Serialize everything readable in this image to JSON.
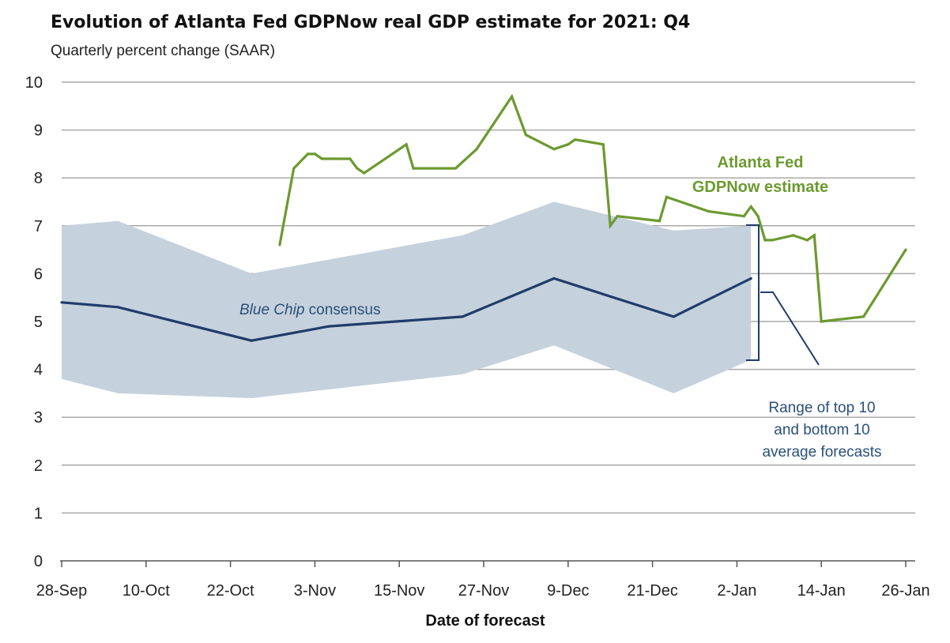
{
  "chart_data": {
    "type": "line",
    "title": "Evolution of Atlanta Fed GDPNow real GDP estimate for 2021: Q4",
    "subtitle": "Quarterly percent change (SAAR)",
    "xlabel": "Date of forecast",
    "ylabel": "",
    "ylim": [
      0,
      10
    ],
    "yticks": [
      "0",
      "1",
      "2",
      "3",
      "4",
      "5",
      "6",
      "7",
      "8",
      "9",
      "10"
    ],
    "xlim": [
      "2021-09-28",
      "2022-01-26"
    ],
    "xticks": [
      {
        "label": "28-Sep",
        "date": "2021-09-28"
      },
      {
        "label": "10-Oct",
        "date": "2021-10-10"
      },
      {
        "label": "22-Oct",
        "date": "2021-10-22"
      },
      {
        "label": "3-Nov",
        "date": "2021-11-03"
      },
      {
        "label": "15-Nov",
        "date": "2021-11-15"
      },
      {
        "label": "27-Nov",
        "date": "2021-11-27"
      },
      {
        "label": "9-Dec",
        "date": "2021-12-09"
      },
      {
        "label": "21-Dec",
        "date": "2021-12-21"
      },
      {
        "label": "2-Jan",
        "date": "2022-01-02"
      },
      {
        "label": "14-Jan",
        "date": "2022-01-14"
      },
      {
        "label": "26-Jan",
        "date": "2022-01-26"
      }
    ],
    "grid": true,
    "series": [
      {
        "name": "Atlanta Fed GDPNow estimate",
        "color": "#6b9a2f",
        "points": [
          {
            "x": "2021-10-29",
            "y": 6.6
          },
          {
            "x": "2021-10-31",
            "y": 8.2
          },
          {
            "x": "2021-11-02",
            "y": 8.5
          },
          {
            "x": "2021-11-03",
            "y": 8.5
          },
          {
            "x": "2021-11-04",
            "y": 8.4
          },
          {
            "x": "2021-11-08",
            "y": 8.4
          },
          {
            "x": "2021-11-09",
            "y": 8.2
          },
          {
            "x": "2021-11-10",
            "y": 8.1
          },
          {
            "x": "2021-11-16",
            "y": 8.7
          },
          {
            "x": "2021-11-17",
            "y": 8.2
          },
          {
            "x": "2021-11-23",
            "y": 8.2
          },
          {
            "x": "2021-11-26",
            "y": 8.6
          },
          {
            "x": "2021-12-01",
            "y": 9.7
          },
          {
            "x": "2021-12-03",
            "y": 8.9
          },
          {
            "x": "2021-12-07",
            "y": 8.6
          },
          {
            "x": "2021-12-09",
            "y": 8.7
          },
          {
            "x": "2021-12-10",
            "y": 8.8
          },
          {
            "x": "2021-12-14",
            "y": 8.7
          },
          {
            "x": "2021-12-15",
            "y": 7.0
          },
          {
            "x": "2021-12-16",
            "y": 7.2
          },
          {
            "x": "2021-12-22",
            "y": 7.1
          },
          {
            "x": "2021-12-23",
            "y": 7.6
          },
          {
            "x": "2021-12-29",
            "y": 7.3
          },
          {
            "x": "2022-01-03",
            "y": 7.2
          },
          {
            "x": "2022-01-04",
            "y": 7.4
          },
          {
            "x": "2022-01-05",
            "y": 7.2
          },
          {
            "x": "2022-01-06",
            "y": 6.7
          },
          {
            "x": "2022-01-07",
            "y": 6.7
          },
          {
            "x": "2022-01-10",
            "y": 6.8
          },
          {
            "x": "2022-01-12",
            "y": 6.7
          },
          {
            "x": "2022-01-13",
            "y": 6.8
          },
          {
            "x": "2022-01-14",
            "y": 5.0
          },
          {
            "x": "2022-01-20",
            "y": 5.1
          },
          {
            "x": "2022-01-26",
            "y": 6.5
          }
        ]
      },
      {
        "name": "Blue Chip consensus",
        "color": "#1f3d6b",
        "points": [
          {
            "x": "2021-09-28",
            "y": 5.4
          },
          {
            "x": "2021-10-06",
            "y": 5.3
          },
          {
            "x": "2021-10-25",
            "y": 4.6
          },
          {
            "x": "2021-11-05",
            "y": 4.9
          },
          {
            "x": "2021-11-24",
            "y": 5.1
          },
          {
            "x": "2021-12-07",
            "y": 5.9
          },
          {
            "x": "2021-12-24",
            "y": 5.1
          },
          {
            "x": "2022-01-04",
            "y": 5.9
          }
        ]
      }
    ],
    "band": {
      "color": "#c5d1dc",
      "points": [
        {
          "x": "2021-09-28",
          "low": 3.8,
          "high": 7.0
        },
        {
          "x": "2021-10-06",
          "low": 3.5,
          "high": 7.1
        },
        {
          "x": "2021-10-25",
          "low": 3.4,
          "high": 6.0
        },
        {
          "x": "2021-11-24",
          "low": 3.9,
          "high": 6.8
        },
        {
          "x": "2021-12-07",
          "low": 4.5,
          "high": 7.5
        },
        {
          "x": "2021-12-24",
          "low": 3.5,
          "high": 6.9
        },
        {
          "x": "2022-01-04",
          "low": 4.2,
          "high": 7.0
        }
      ]
    },
    "annotations": {
      "gdpnow_label_line1": "Atlanta Fed",
      "gdpnow_label_line2": "GDPNow estimate",
      "bluechip_label_italic": "Blue Chip",
      "bluechip_label_rest": " consensus",
      "range_label_line1": "Range of top 10",
      "range_label_line2": "and bottom 10",
      "range_label_line3": "average forecasts"
    }
  }
}
